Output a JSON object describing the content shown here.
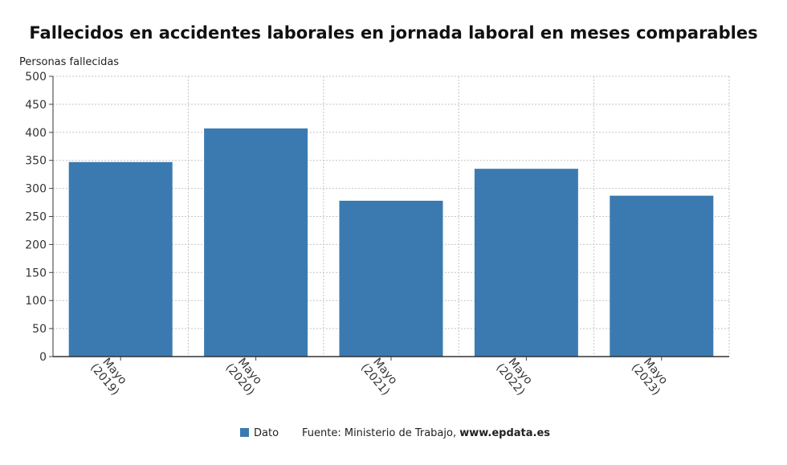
{
  "chart_data": {
    "type": "bar",
    "title": "Fallecidos en accidentes laborales en jornada laboral en meses comparables",
    "ylabel": "Personas fallecidas",
    "xlabel": "",
    "categories": [
      "Mayo\n(2019)",
      "Mayo\n(2020)",
      "Mayo\n(2021)",
      "Mayo\n(2022)",
      "Mayo\n(2023)"
    ],
    "series": [
      {
        "name": "Dato",
        "values": [
          347,
          407,
          278,
          335,
          287
        ],
        "color": "#3b7ab1"
      }
    ],
    "ylim": [
      0,
      500
    ],
    "yticks": [
      "0",
      "50",
      "100",
      "150",
      "200",
      "250",
      "300",
      "350",
      "400",
      "450",
      "500"
    ],
    "grid": true,
    "legend_position": "bottom"
  },
  "source": {
    "prefix": "Fuente: Ministerio de Trabajo, ",
    "site": "www.epdata.es"
  }
}
